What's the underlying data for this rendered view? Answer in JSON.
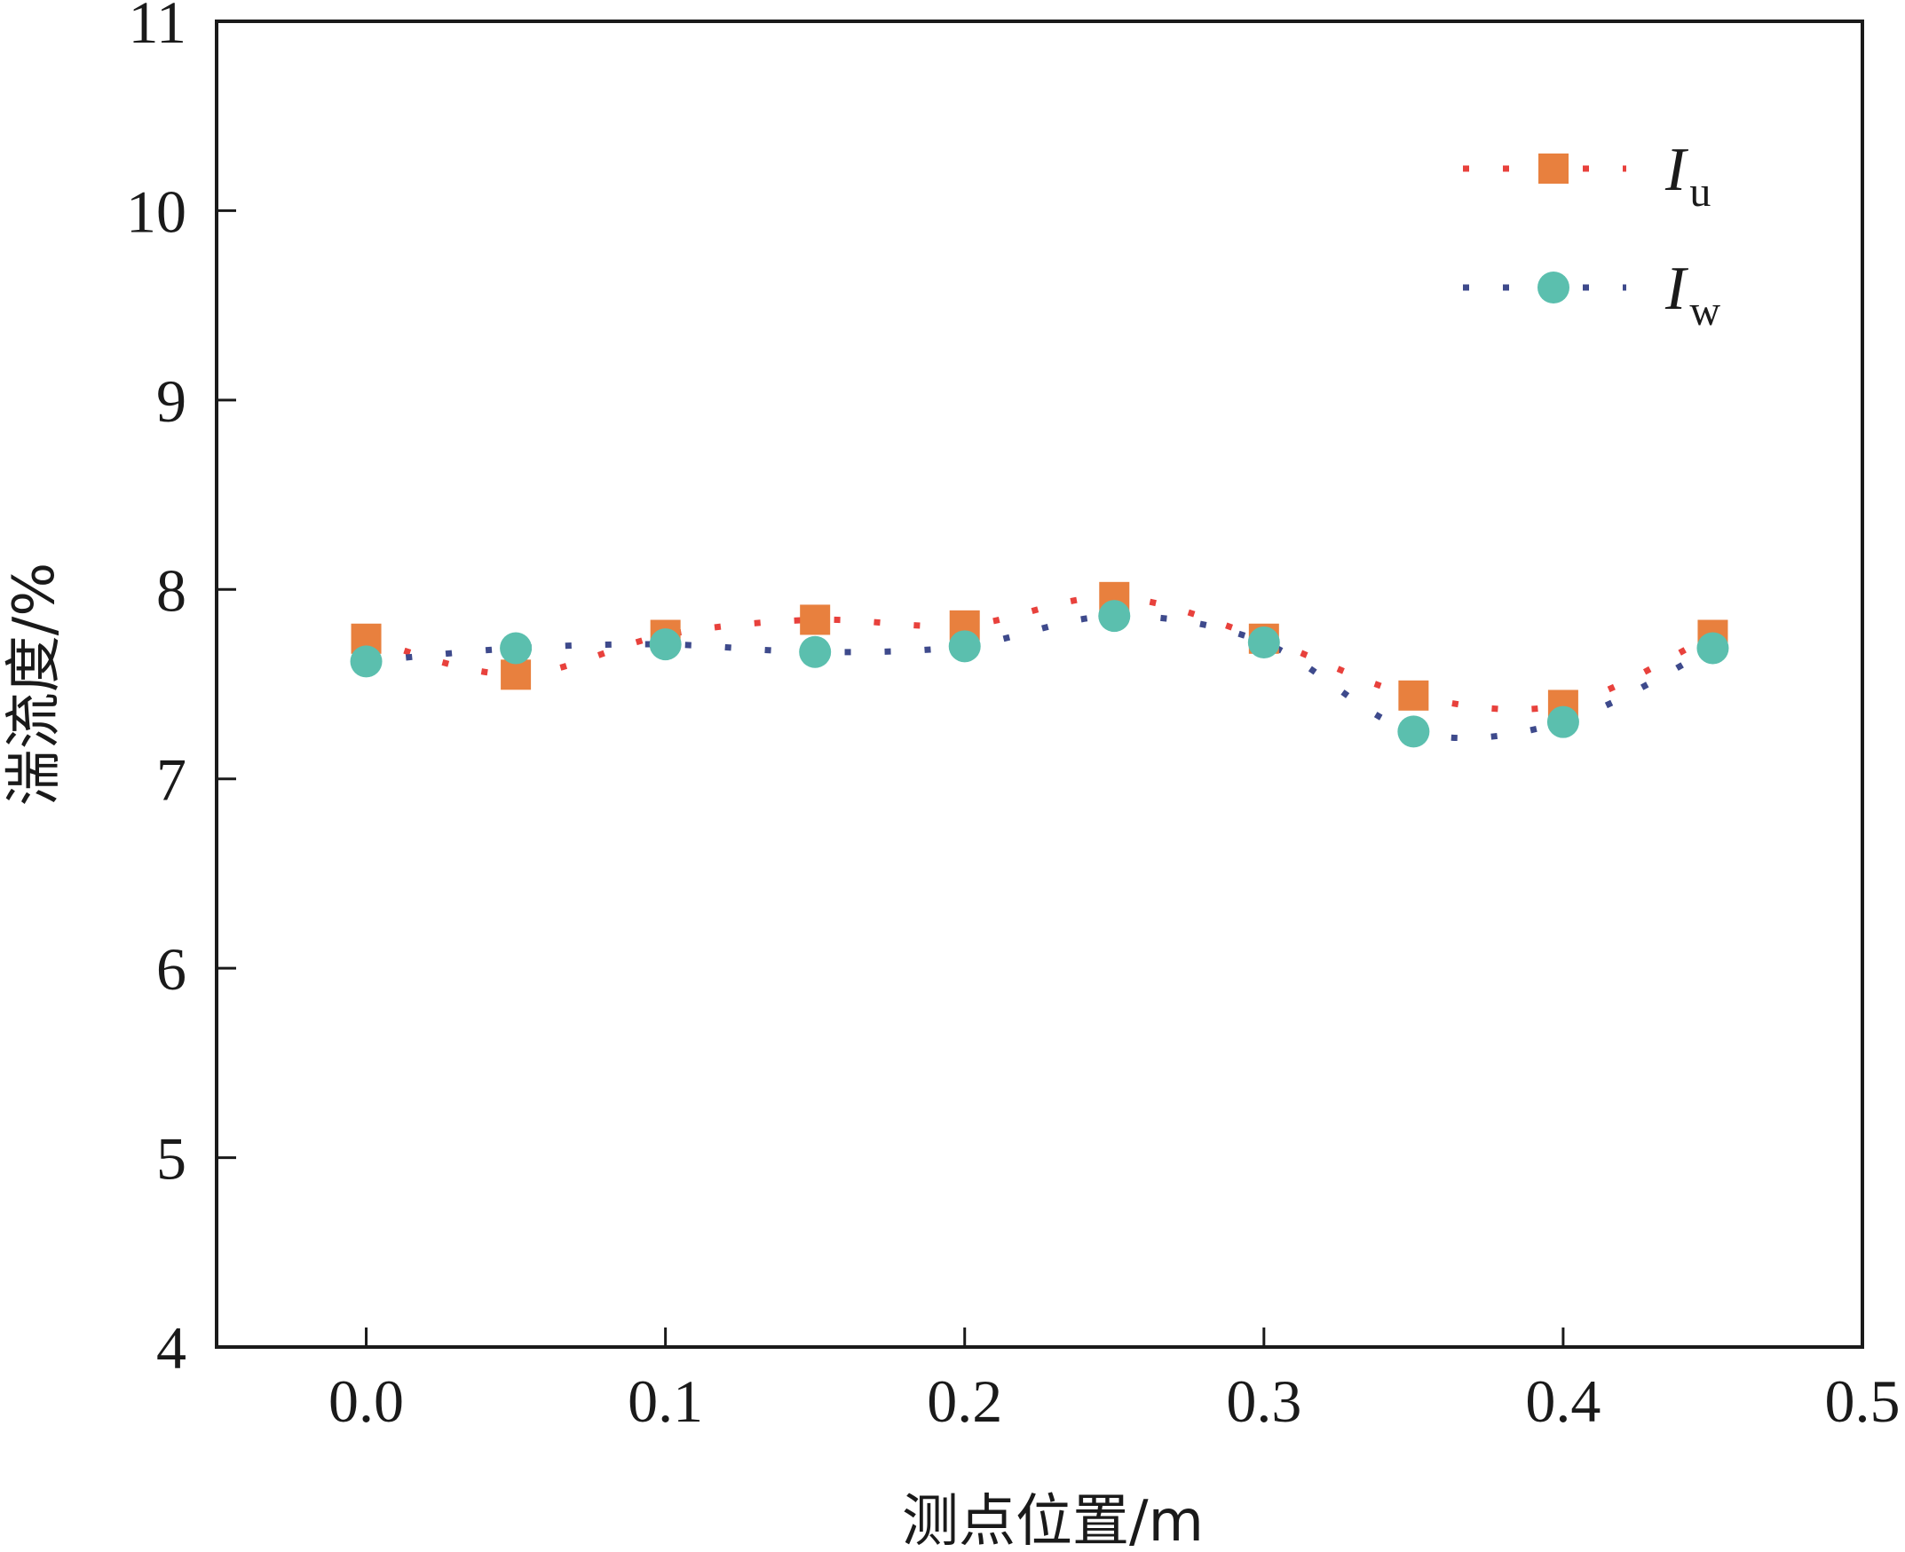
{
  "chart_data": {
    "type": "scatter",
    "title": "",
    "xlabel": "测点位置/m",
    "ylabel": "湍流度/%",
    "xlim": [
      -0.05,
      0.5
    ],
    "ylim": [
      4,
      11
    ],
    "x_ticks": [
      "0.0",
      "0.1",
      "0.2",
      "0.3",
      "0.4",
      "0.5"
    ],
    "y_ticks": [
      "4",
      "5",
      "6",
      "7",
      "8",
      "9",
      "10",
      "11"
    ],
    "grid": false,
    "legend_position": "top-right",
    "x": [
      0.0,
      0.05,
      0.1,
      0.15,
      0.2,
      0.25,
      0.3,
      0.35,
      0.4,
      0.45
    ],
    "series": [
      {
        "name": "I",
        "subscript": "u",
        "marker": "square",
        "marker_color": "#E8803E",
        "line_color": "#E8413C",
        "line_style": "dotted",
        "values": [
          7.74,
          7.55,
          7.76,
          7.84,
          7.81,
          7.96,
          7.74,
          7.44,
          7.39,
          7.76
        ]
      },
      {
        "name": "I",
        "subscript": "w",
        "marker": "circle",
        "marker_color": "#5BBFAE",
        "line_color": "#3E4A8C",
        "line_style": "dotted",
        "values": [
          7.62,
          7.69,
          7.71,
          7.67,
          7.7,
          7.86,
          7.72,
          7.25,
          7.3,
          7.69
        ]
      }
    ]
  }
}
